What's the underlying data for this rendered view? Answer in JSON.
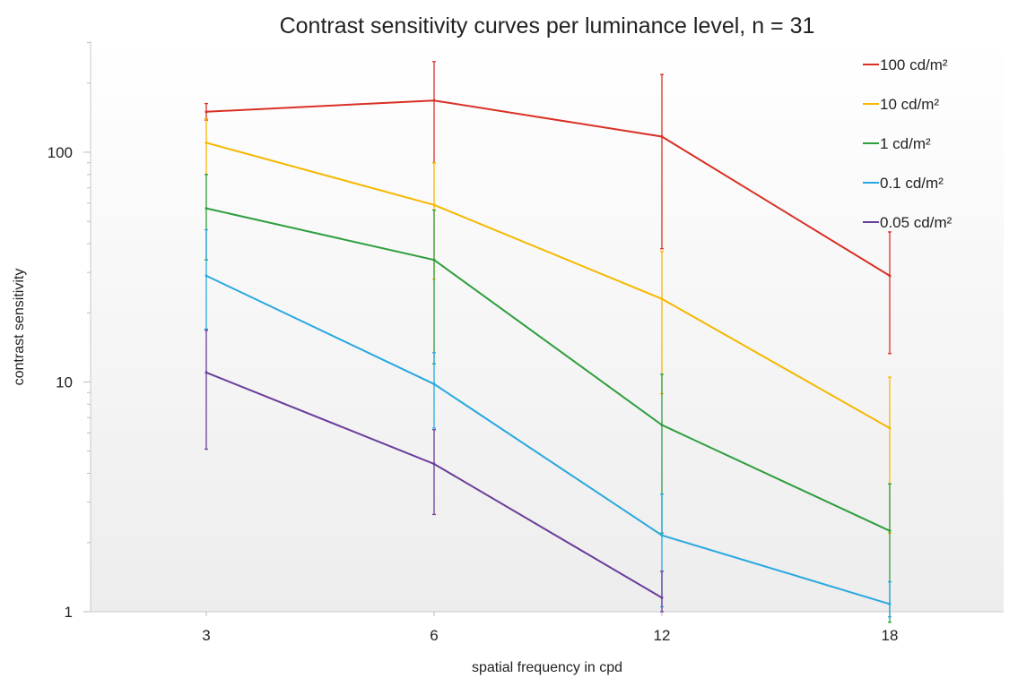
{
  "chart_data": {
    "type": "line",
    "title": "Contrast sensitivity curves per luminance level, n = 31",
    "xlabel": "spatial frequency in cpd",
    "ylabel": "contrast sensitivity",
    "y_scale": "log",
    "ylim": [
      1,
      300
    ],
    "x_tick_labels": [
      "3",
      "6",
      "12",
      "18"
    ],
    "y_tick_labels": [
      "1",
      "10",
      "100"
    ],
    "y_tick_values": [
      1,
      10,
      100
    ],
    "legend_position": "top-right",
    "series": [
      {
        "name": "100 cd/m²",
        "color": "#d93025",
        "points": [
          {
            "x": "3",
            "y": 150,
            "err_low": 138,
            "err_high": 163
          },
          {
            "x": "6",
            "y": 168,
            "err_low": 90,
            "err_high": 248
          },
          {
            "x": "12",
            "y": 117,
            "err_low": 38,
            "err_high": 218
          },
          {
            "x": "18",
            "y": 29,
            "err_low": 13.3,
            "err_high": 45
          }
        ]
      },
      {
        "name": "10 cd/m²",
        "color": "#f5b800",
        "points": [
          {
            "x": "3",
            "y": 110,
            "err_low": 80,
            "err_high": 140
          },
          {
            "x": "6",
            "y": 59,
            "err_low": 28,
            "err_high": 90
          },
          {
            "x": "12",
            "y": 23,
            "err_low": 8.9,
            "err_high": 37
          },
          {
            "x": "18",
            "y": 6.3,
            "err_low": 2.2,
            "err_high": 10.5
          }
        ]
      },
      {
        "name": "1 cd/m²",
        "color": "#2e9e3e",
        "points": [
          {
            "x": "3",
            "y": 57,
            "err_low": 34,
            "err_high": 80
          },
          {
            "x": "6",
            "y": 34,
            "err_low": 12,
            "err_high": 56
          },
          {
            "x": "12",
            "y": 6.5,
            "err_low": 2.2,
            "err_high": 10.8
          },
          {
            "x": "18",
            "y": 2.25,
            "err_low": 0.9,
            "err_high": 3.6
          }
        ]
      },
      {
        "name": "0.1 cd/m²",
        "color": "#29a8e0",
        "points": [
          {
            "x": "3",
            "y": 29,
            "err_low": 17,
            "err_high": 46
          },
          {
            "x": "6",
            "y": 9.8,
            "err_low": 6.3,
            "err_high": 13.4
          },
          {
            "x": "12",
            "y": 2.15,
            "err_low": 1.05,
            "err_high": 3.25
          },
          {
            "x": "18",
            "y": 1.08,
            "err_low": 0.95,
            "err_high": 1.35
          }
        ]
      },
      {
        "name": "0.05 cd/m²",
        "color": "#6a3d9a",
        "points": [
          {
            "x": "3",
            "y": 11,
            "err_low": 5.1,
            "err_high": 16.8
          },
          {
            "x": "6",
            "y": 4.4,
            "err_low": 2.65,
            "err_high": 6.2
          },
          {
            "x": "12",
            "y": 1.15,
            "err_low": 1.0,
            "err_high": 1.5
          }
        ]
      }
    ]
  }
}
